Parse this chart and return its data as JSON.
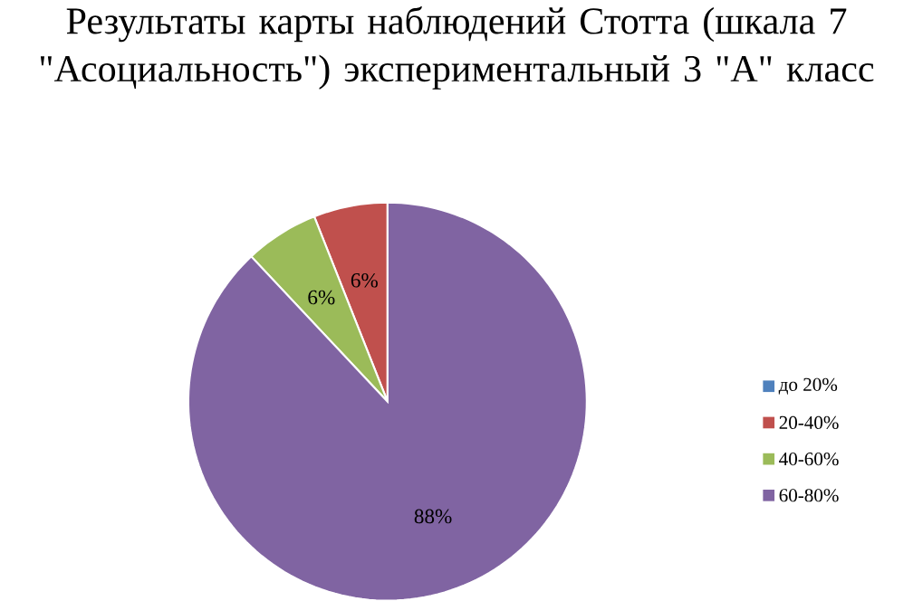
{
  "chart_data": {
    "type": "pie",
    "title": "Результаты карты наблюдений Стотта (шкала 7 \"Асоциальность\") экспериментальный 3 \"А\" класс",
    "categories": [
      "до 20%",
      "20-40%",
      "40-60%",
      "60-80%"
    ],
    "values": [
      0,
      6,
      6,
      88
    ],
    "value_labels": [
      null,
      "6%",
      "6%",
      "88%"
    ],
    "colors": [
      "#4f81bd",
      "#c0504d",
      "#9bbb59",
      "#8064a2"
    ],
    "legend": "right"
  }
}
